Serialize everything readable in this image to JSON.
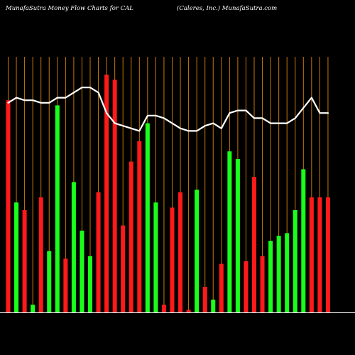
{
  "header": {
    "title": "MunafaSutra  Money Flow  Charts for CAL",
    "company": "(Caleres,  Inc.) MunafaSutra.com"
  },
  "chart_data": {
    "type": "bar",
    "title": "MunafaSutra  Money Flow  Charts for CAL",
    "subtitle": "(Caleres,  Inc.) MunafaSutra.com",
    "bar_colors": {
      "down": "#ff1a1a",
      "up": "#1aff1a"
    },
    "line_color": "#ffffff",
    "grid_color": "#c87800",
    "background": "#000000",
    "ylim": [
      0,
      100
    ],
    "series": [
      {
        "kind": "bar",
        "values": [
          83,
          43,
          40,
          3,
          45,
          24,
          81,
          21,
          51,
          32,
          22,
          47,
          93,
          91,
          34,
          59,
          67,
          74,
          43,
          3,
          41,
          47,
          1,
          48,
          10,
          5,
          19,
          63,
          60,
          20,
          53,
          22,
          28,
          30,
          31,
          40,
          56,
          45,
          45,
          45
        ],
        "directions": [
          "down",
          "up",
          "down",
          "up",
          "down",
          "up",
          "up",
          "down",
          "up",
          "up",
          "up",
          "down",
          "down",
          "down",
          "down",
          "down",
          "down",
          "up",
          "up",
          "down",
          "down",
          "down",
          "down",
          "up",
          "down",
          "up",
          "down",
          "up",
          "up",
          "down",
          "down",
          "down",
          "up",
          "up",
          "up",
          "up",
          "up",
          "down",
          "down",
          "down"
        ]
      },
      {
        "kind": "line",
        "values": [
          82,
          84,
          83,
          83,
          82,
          82,
          84,
          84,
          86,
          88,
          88,
          86,
          78,
          74,
          73,
          72,
          71,
          77,
          77,
          76,
          74,
          72,
          71,
          71,
          73,
          74,
          72,
          78,
          79,
          79,
          76,
          76,
          74,
          74,
          74,
          76,
          80,
          84,
          78,
          78
        ]
      }
    ]
  }
}
